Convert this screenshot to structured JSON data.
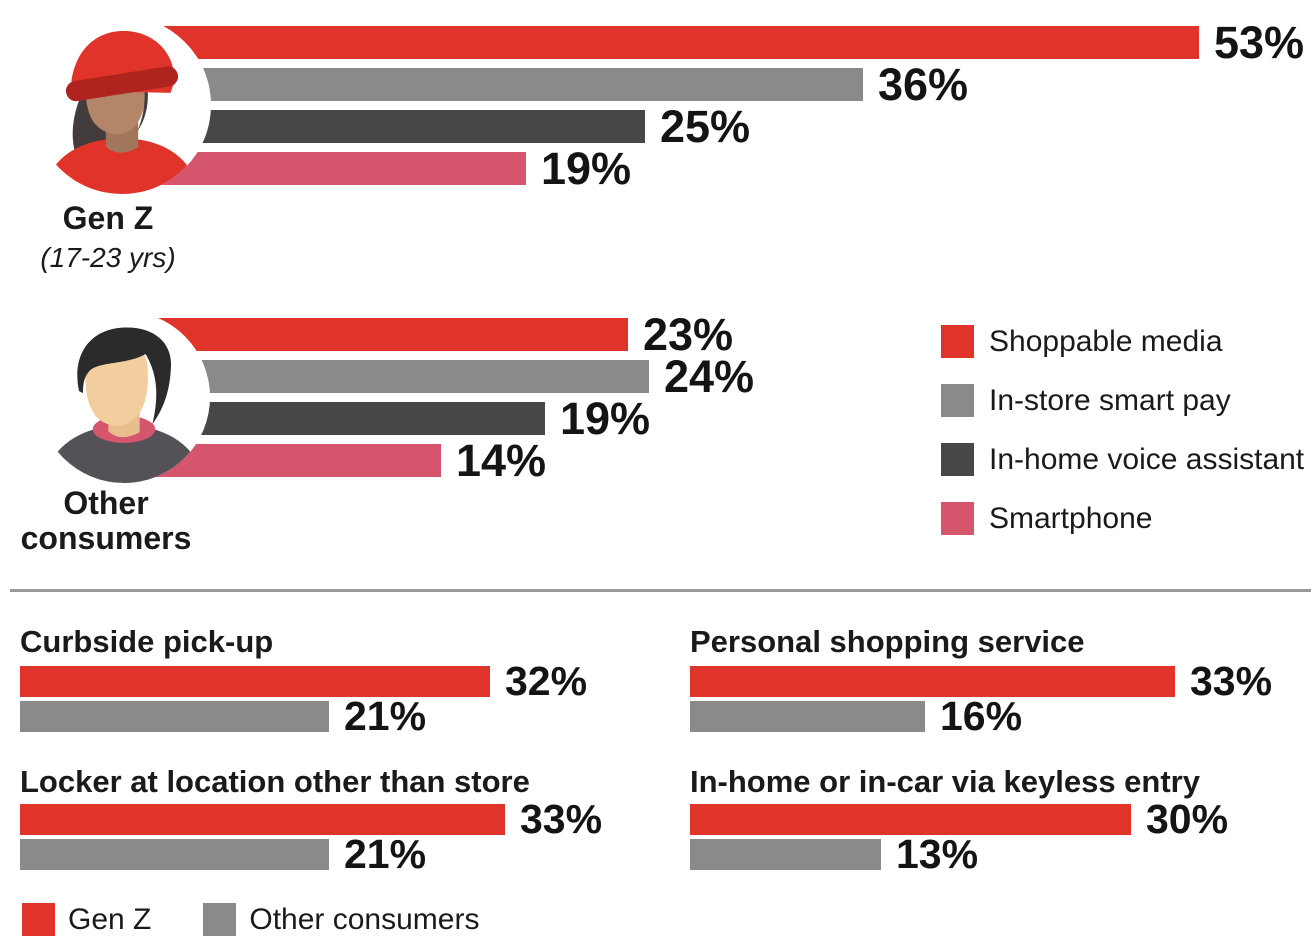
{
  "palette": {
    "red": "#E0332A",
    "gray": "#8A8A8A",
    "dark_gray": "#474747",
    "pink": "#D5566C",
    "divider": "#999999",
    "text": "#1A1A1A"
  },
  "chart_data": [
    {
      "type": "bar",
      "orientation": "horizontal",
      "title": "",
      "categories": [
        "Shoppable media",
        "In-store smart pay",
        "In-home voice assistant",
        "Smartphone"
      ],
      "series": [
        {
          "name": "Gen Z (17-23 yrs)",
          "values": [
            53,
            36,
            25,
            19
          ]
        },
        {
          "name": "Other consumers",
          "values": [
            23,
            24,
            19,
            14
          ]
        }
      ],
      "unit": "%",
      "xlim": [
        0,
        53
      ],
      "grid": false,
      "legend_position": "right",
      "series_colors": [
        "#E0332A",
        "#8A8A8A",
        "#474747",
        "#D5566C"
      ]
    },
    {
      "type": "bar",
      "orientation": "horizontal",
      "title": "",
      "categories": [
        "Curbside pick-up",
        "Personal shopping service",
        "Locker at location other than store",
        "In-home or in-car via keyless entry"
      ],
      "series": [
        {
          "name": "Gen Z",
          "values": [
            32,
            33,
            33,
            30
          ]
        },
        {
          "name": "Other consumers",
          "values": [
            21,
            16,
            21,
            13
          ]
        }
      ],
      "unit": "%",
      "xlim": [
        0,
        33
      ],
      "grid": false,
      "legend_position": "bottom",
      "series_colors": [
        "#E0332A",
        "#8A8A8A"
      ]
    }
  ],
  "ui": {
    "top": {
      "genz_name": "Gen Z",
      "genz_subtitle": "(17-23 yrs)",
      "other_name_line1": "Other",
      "other_name_line2": "consumers",
      "genz_pcts": [
        "53%",
        "36%",
        "25%",
        "19%"
      ],
      "other_pcts": [
        "23%",
        "24%",
        "19%",
        "14%"
      ],
      "legend": [
        "Shoppable media",
        "In-store smart pay",
        "In-home voice assistant",
        "Smartphone"
      ]
    },
    "bottom": {
      "titles": [
        "Curbside pick-up",
        "Personal shopping service",
        "Locker at location other than store",
        "In-home or in-car via keyless entry"
      ],
      "pcts": [
        [
          "32%",
          "21%"
        ],
        [
          "33%",
          "16%"
        ],
        [
          "33%",
          "21%"
        ],
        [
          "30%",
          "13%"
        ]
      ],
      "legend": [
        "Gen Z",
        "Other consumers"
      ]
    }
  }
}
